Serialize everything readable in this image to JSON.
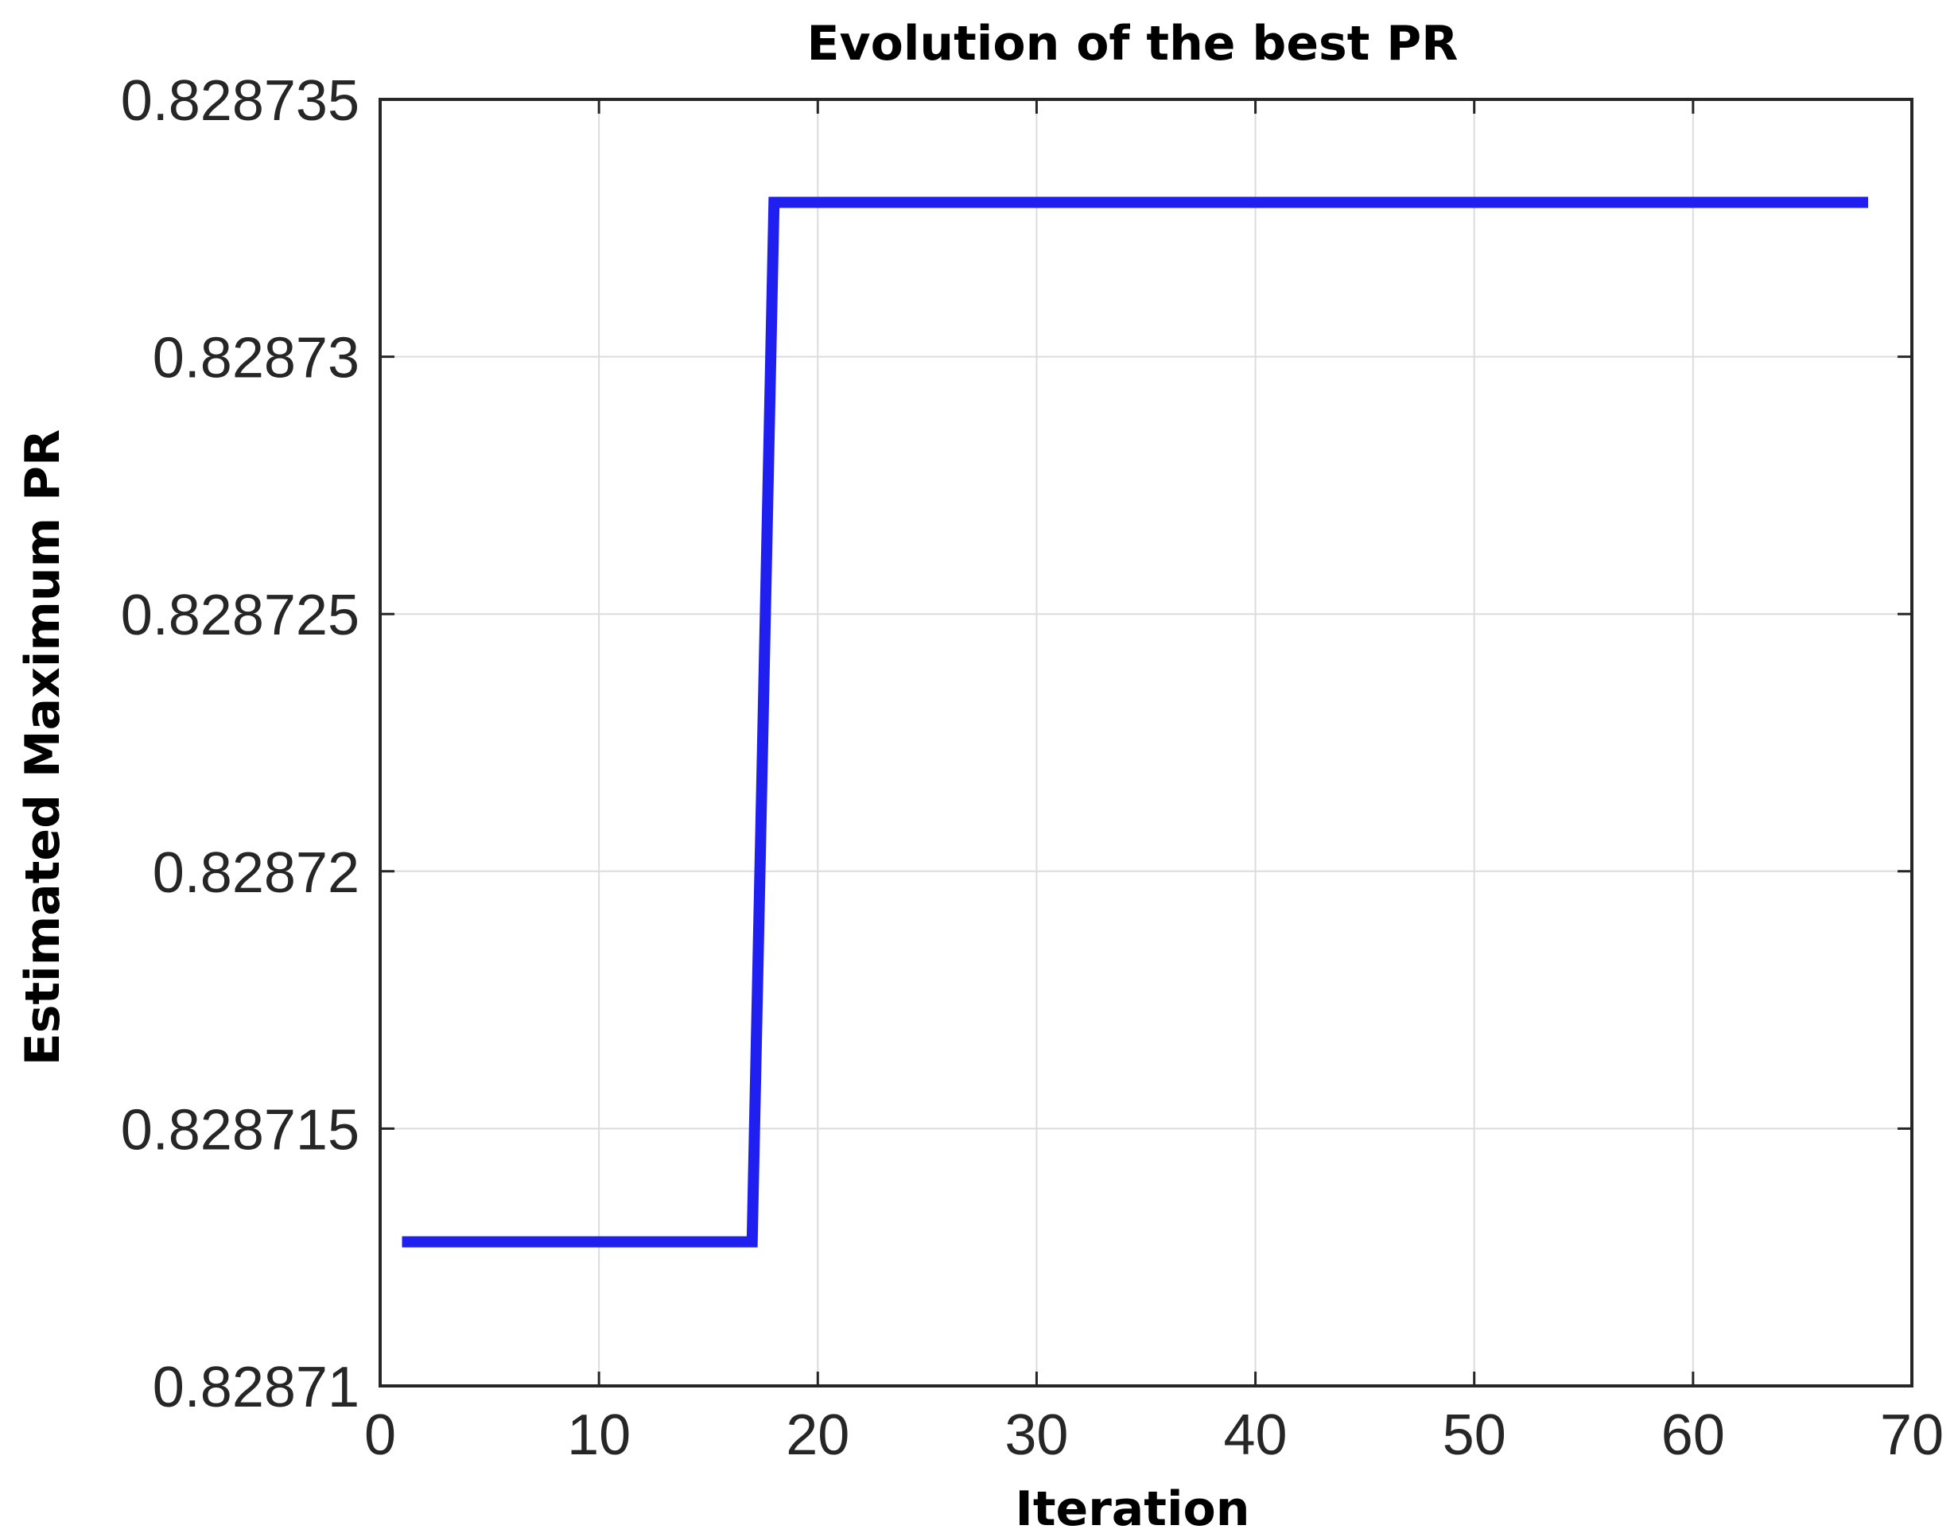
{
  "chart_data": {
    "type": "line",
    "title": "Evolution of the best PR",
    "xlabel": "Iteration",
    "ylabel": "Estimated Maximum PR",
    "xlim": [
      0,
      70
    ],
    "ylim": [
      0.82871,
      0.828735
    ],
    "x_ticks": [
      0,
      10,
      20,
      30,
      40,
      50,
      60,
      70
    ],
    "y_ticks": [
      0.82871,
      0.828715,
      0.82872,
      0.828725,
      0.82873,
      0.828735
    ],
    "x_tick_labels": [
      "0",
      "10",
      "20",
      "30",
      "40",
      "50",
      "60",
      "70"
    ],
    "y_tick_labels": [
      "0.82871",
      "0.828715",
      "0.82872",
      "0.828725",
      "0.82873",
      "0.828735"
    ],
    "grid": true,
    "series": [
      {
        "color": "#1f1ff0",
        "points": [
          [
            1,
            0.8287128
          ],
          [
            17,
            0.8287128
          ],
          [
            18,
            0.828733
          ],
          [
            68,
            0.828733
          ]
        ]
      }
    ]
  }
}
